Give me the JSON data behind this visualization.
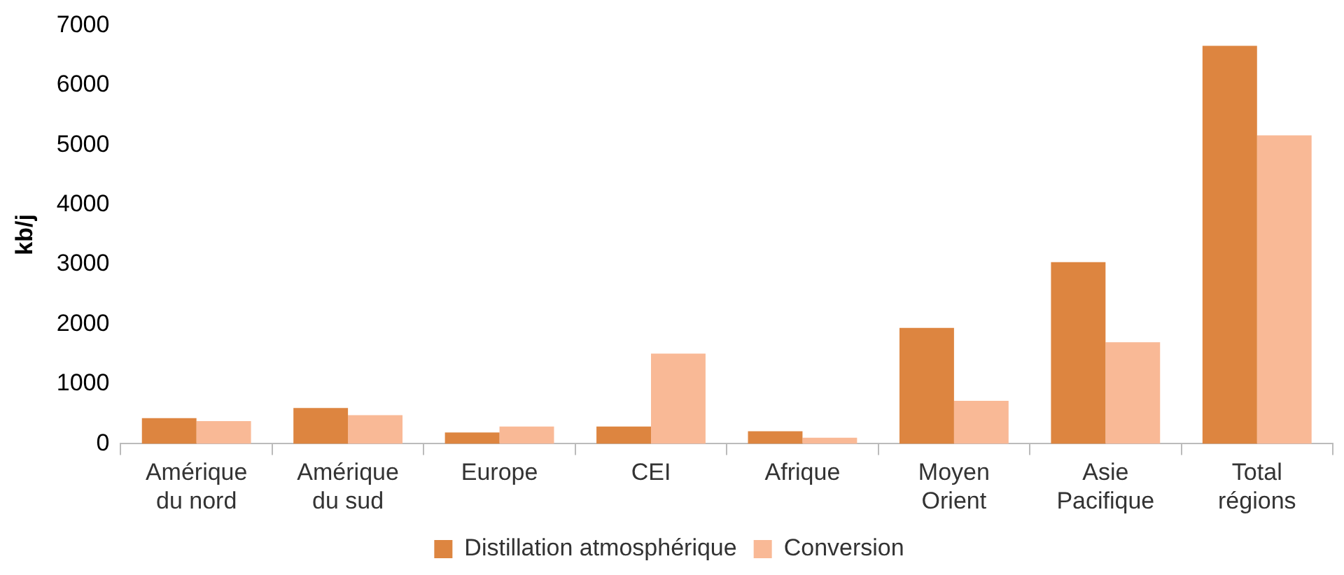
{
  "chart_data": {
    "type": "bar",
    "ylabel": "kb/j",
    "categories": [
      "Amérique du nord",
      "Amérique du sud",
      "Europe",
      "CEI",
      "Afrique",
      "Moyen Orient",
      "Asie Pacifique",
      "Total régions"
    ],
    "series": [
      {
        "name": "Distillation atmosphérique",
        "color": "#dd8540",
        "values": [
          430,
          600,
          190,
          290,
          210,
          1940,
          3040,
          6660
        ]
      },
      {
        "name": "Conversion",
        "color": "#f9b996",
        "values": [
          380,
          480,
          290,
          1510,
          100,
          720,
          1700,
          5160
        ]
      }
    ],
    "ylim": [
      0,
      7000
    ],
    "yticks": [
      0,
      1000,
      2000,
      3000,
      4000,
      5000,
      6000,
      7000
    ],
    "grid": false,
    "legend": "bottom"
  }
}
